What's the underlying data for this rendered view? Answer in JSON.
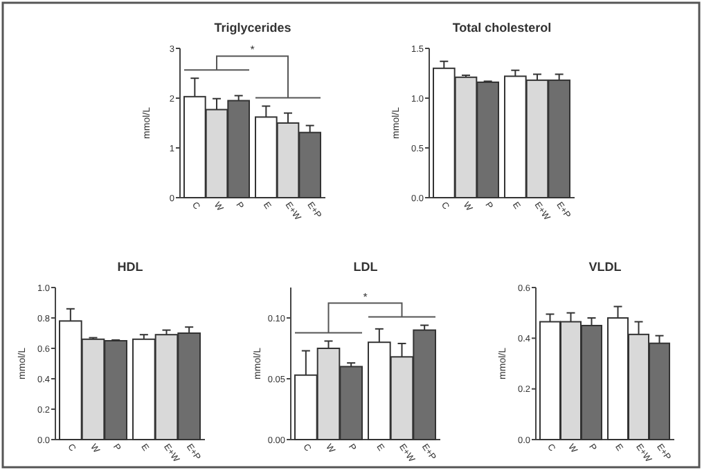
{
  "chart_data": [
    {
      "type": "bar",
      "title": "Triglycerides",
      "ylabel": "mmol/L",
      "categories": [
        "C",
        "W",
        "P",
        "E",
        "E+W",
        "E+P"
      ],
      "values": [
        2.03,
        1.77,
        1.95,
        1.62,
        1.5,
        1.31
      ],
      "errors": [
        [
          2.03,
          2.4
        ],
        [
          1.77,
          1.99
        ],
        [
          1.95,
          2.05
        ],
        [
          1.62,
          1.84
        ],
        [
          1.5,
          1.7
        ],
        [
          1.31,
          1.45
        ]
      ],
      "colors": [
        "#ffffff",
        "#d9d9d9",
        "#6e6e6e",
        "#ffffff",
        "#d9d9d9",
        "#6e6e6e"
      ],
      "ylim": [
        0,
        3
      ],
      "yticks": [
        0,
        1,
        2,
        3
      ],
      "annotations": [
        "*"
      ]
    },
    {
      "type": "bar",
      "title": "Total cholesterol",
      "ylabel": "mmol/L",
      "categories": [
        "C",
        "W",
        "P",
        "E",
        "E+W",
        "E+P"
      ],
      "values": [
        1.3,
        1.21,
        1.16,
        1.22,
        1.18,
        1.18
      ],
      "errors": [
        [
          1.3,
          1.37
        ],
        [
          1.21,
          1.23
        ],
        [
          1.16,
          1.17
        ],
        [
          1.22,
          1.28
        ],
        [
          1.18,
          1.24
        ],
        [
          1.18,
          1.24
        ]
      ],
      "colors": [
        "#ffffff",
        "#d9d9d9",
        "#6e6e6e",
        "#ffffff",
        "#d9d9d9",
        "#6e6e6e"
      ],
      "ylim": [
        0,
        1.5
      ],
      "yticks": [
        {
          "value": 0,
          "label": "0.0"
        },
        {
          "value": 0.5,
          "label": "0.5"
        },
        {
          "value": 1,
          "label": "1.0"
        },
        {
          "value": 1.5,
          "label": "1.5"
        }
      ]
    },
    {
      "type": "bar",
      "title": "HDL",
      "ylabel": "mmol/L",
      "categories": [
        "C",
        "W",
        "P",
        "E",
        "E+W",
        "E+P"
      ],
      "values": [
        0.78,
        0.66,
        0.65,
        0.66,
        0.69,
        0.7
      ],
      "errors": [
        [
          0.78,
          0.86
        ],
        [
          0.66,
          0.67
        ],
        [
          0.65,
          0.655
        ],
        [
          0.66,
          0.69
        ],
        [
          0.69,
          0.72
        ],
        [
          0.7,
          0.74
        ]
      ],
      "colors": [
        "#ffffff",
        "#d9d9d9",
        "#6e6e6e",
        "#ffffff",
        "#d9d9d9",
        "#6e6e6e"
      ],
      "ylim": [
        0,
        1
      ],
      "yticks": [
        {
          "value": 0,
          "label": "0.0"
        },
        0.2,
        0.4,
        0.6,
        0.8,
        {
          "value": 1,
          "label": "1.0"
        }
      ]
    },
    {
      "type": "bar",
      "title": "LDL",
      "ylabel": "mmol/L",
      "categories": [
        "C",
        "W",
        "P",
        "E",
        "E+W",
        "E+P"
      ],
      "values": [
        0.053,
        0.075,
        0.06,
        0.08,
        0.068,
        0.09
      ],
      "errors": [
        [
          0.053,
          0.073
        ],
        [
          0.075,
          0.081
        ],
        [
          0.06,
          0.063
        ],
        [
          0.08,
          0.091
        ],
        [
          0.068,
          0.079
        ],
        [
          0.09,
          0.094
        ]
      ],
      "colors": [
        "#ffffff",
        "#d9d9d9",
        "#6e6e6e",
        "#ffffff",
        "#d9d9d9",
        "#6e6e6e"
      ],
      "ylim": [
        0,
        0.125
      ],
      "yticks": [
        {
          "value": 0,
          "label": "0.00"
        },
        0.05,
        {
          "value": 0.1,
          "label": "0.10"
        }
      ],
      "annotations": [
        "*"
      ]
    },
    {
      "type": "bar",
      "title": "VLDL",
      "ylabel": "mmol/L",
      "categories": [
        "C",
        "W",
        "P",
        "E",
        "E+W",
        "E+P"
      ],
      "values": [
        0.465,
        0.465,
        0.45,
        0.48,
        0.415,
        0.38
      ],
      "errors": [
        [
          0.465,
          0.495
        ],
        [
          0.465,
          0.5
        ],
        [
          0.45,
          0.48
        ],
        [
          0.48,
          0.525
        ],
        [
          0.415,
          0.465
        ],
        [
          0.38,
          0.41
        ]
      ],
      "colors": [
        "#ffffff",
        "#d9d9d9",
        "#6e6e6e",
        "#ffffff",
        "#d9d9d9",
        "#6e6e6e"
      ],
      "ylim": [
        0,
        0.6
      ],
      "yticks": [
        {
          "value": 0,
          "label": "0.0"
        },
        0.2,
        0.4,
        0.6
      ]
    }
  ]
}
